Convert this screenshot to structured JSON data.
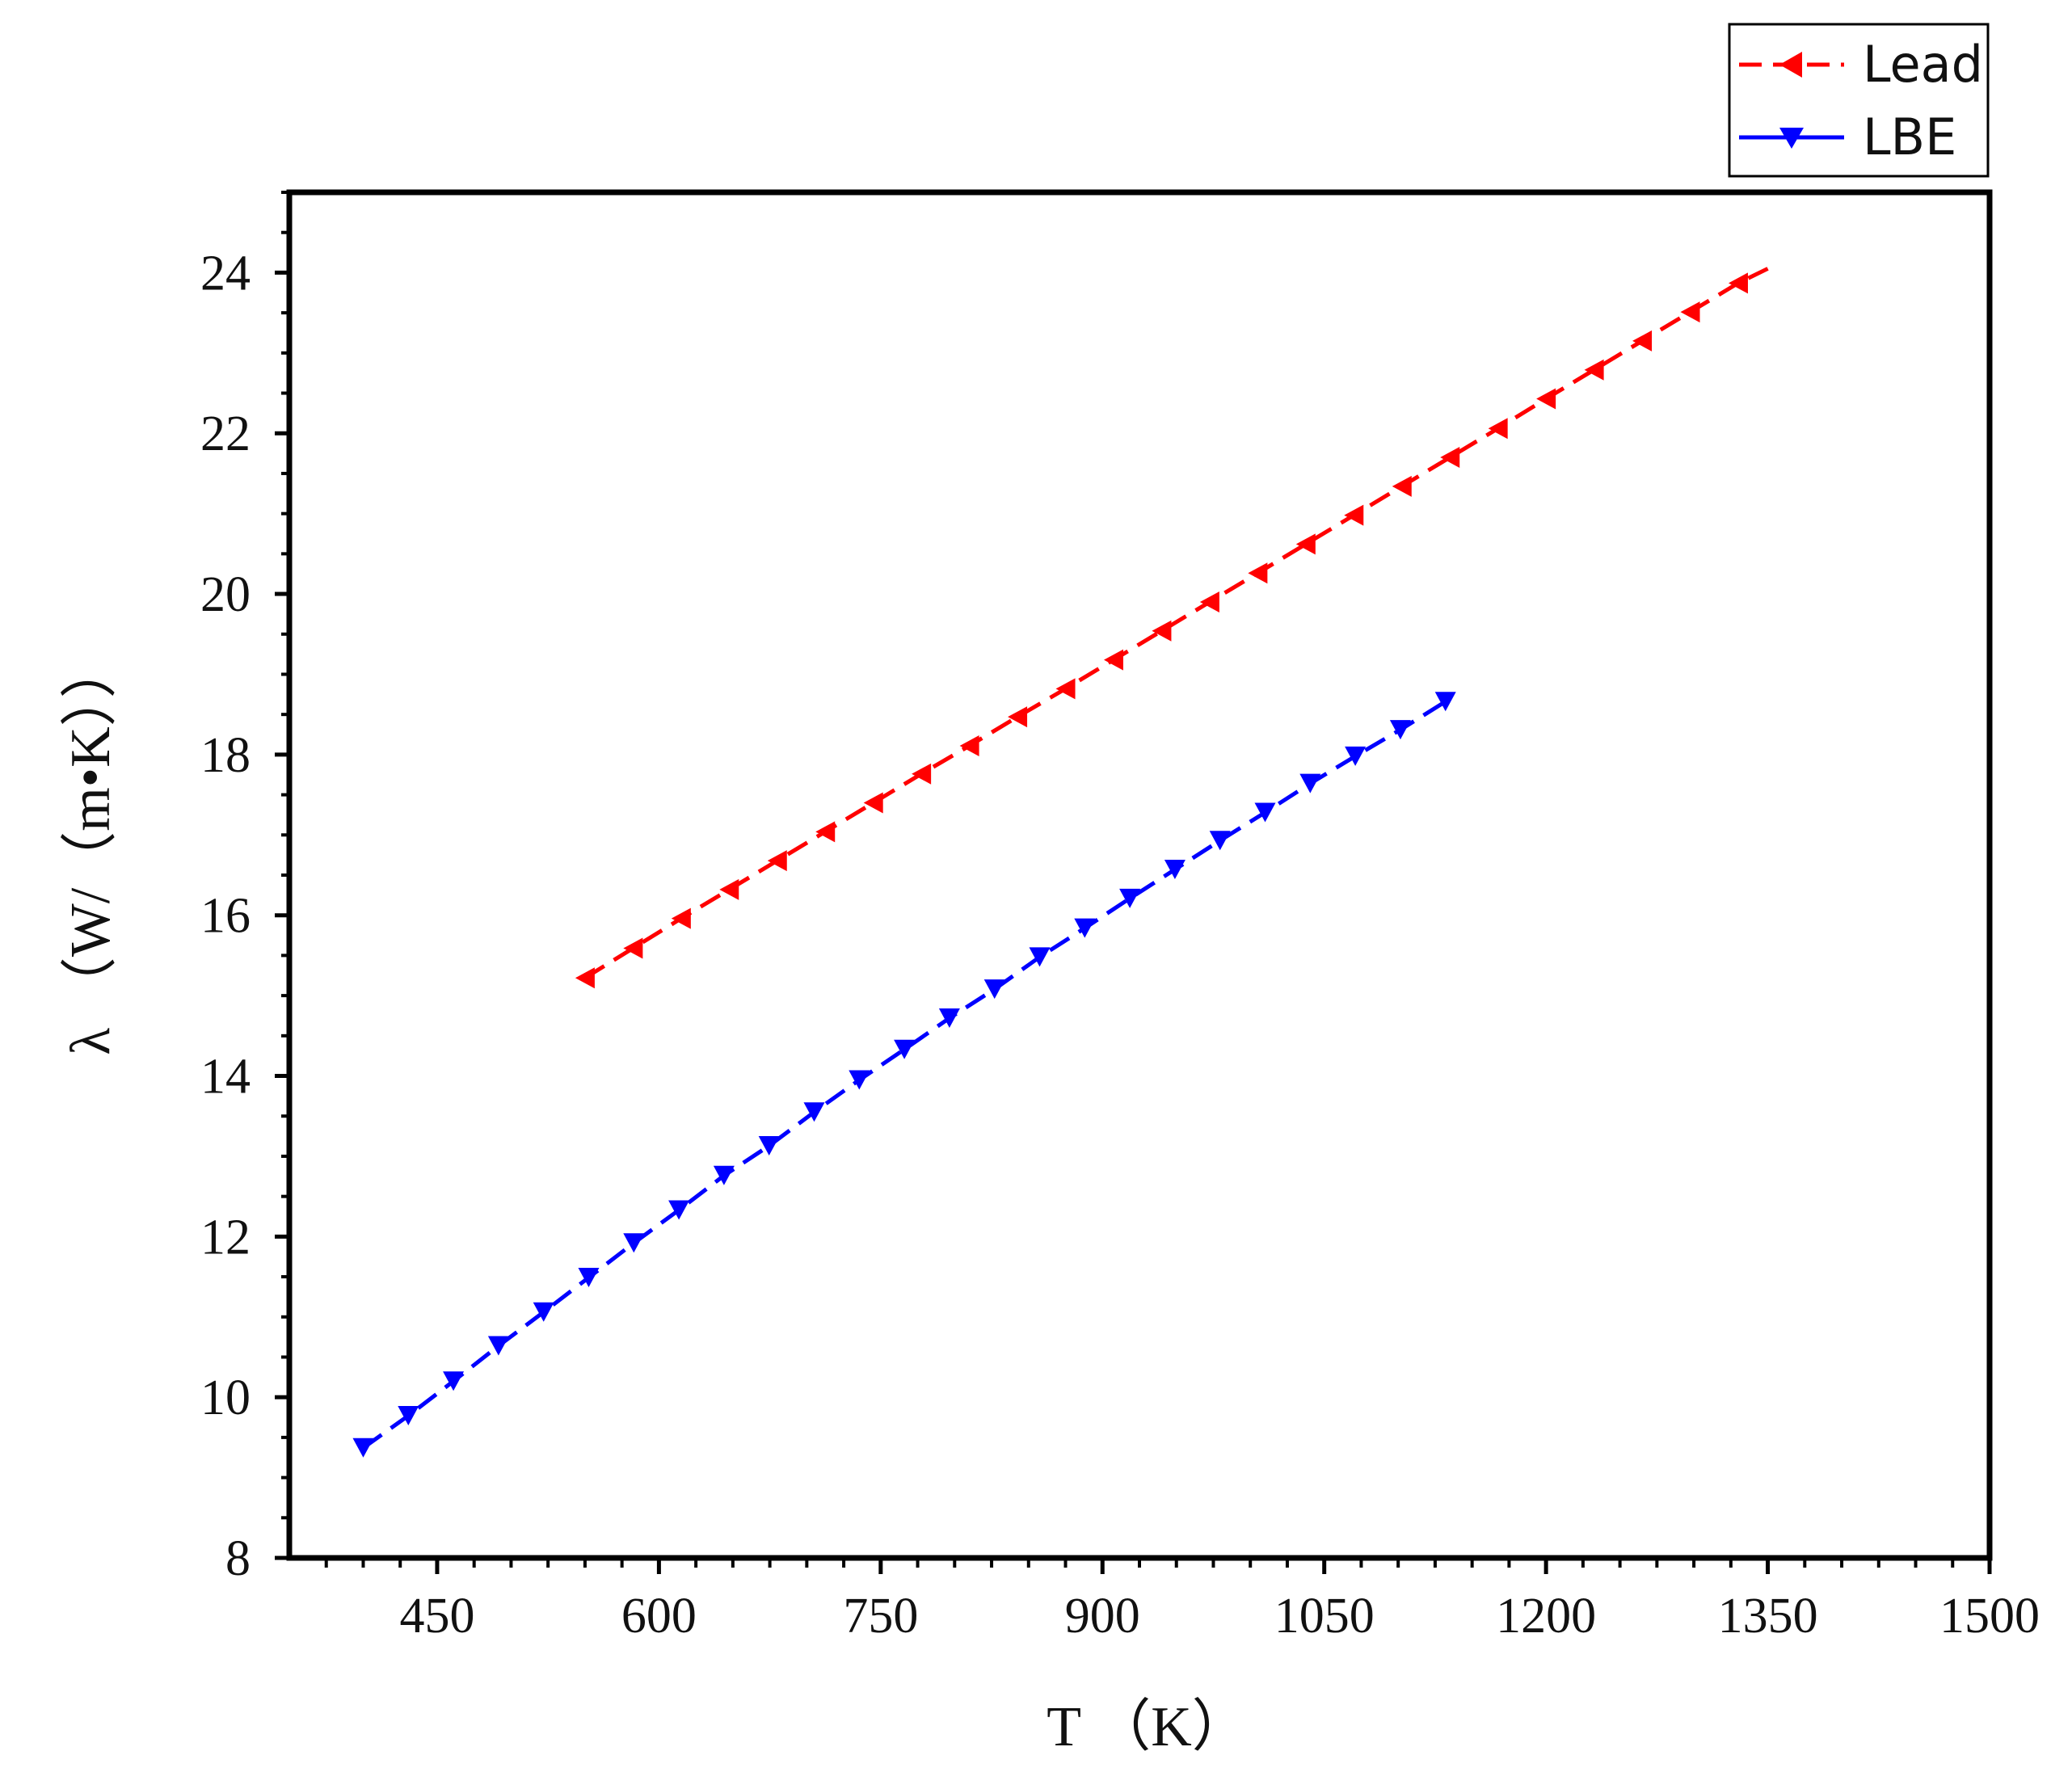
{
  "chart_data": {
    "type": "line",
    "xlabel": "T （K）",
    "ylabel": "λ （W/（m•K））",
    "xlim": [
      350,
      1500
    ],
    "ylim": [
      8,
      25
    ],
    "x_ticks": [
      "450",
      "600",
      "750",
      "900",
      "1050",
      "1200",
      "1350",
      "1500"
    ],
    "x_tick_values": [
      450,
      600,
      750,
      900,
      1050,
      1200,
      1350,
      1500
    ],
    "y_ticks": [
      "8",
      "10",
      "12",
      "14",
      "16",
      "18",
      "20",
      "22",
      "24"
    ],
    "y_tick_values": [
      8,
      10,
      12,
      14,
      16,
      18,
      20,
      22,
      24
    ],
    "grid": false,
    "legend_position": "top-right, outside plot",
    "series": [
      {
        "name": "Lead",
        "color": "#ff0000",
        "marker": "triangle-left",
        "line_style": "dashed",
        "x": [
          550,
          582.5,
          615,
          647.5,
          680,
          712.5,
          745,
          777.5,
          810,
          842.5,
          875,
          907.5,
          940,
          972.5,
          1005,
          1037.5,
          1070,
          1102.5,
          1135,
          1167.5,
          1200,
          1232.5,
          1265,
          1297.5,
          1330
        ],
        "y": [
          15.22,
          15.59,
          15.96,
          16.32,
          16.68,
          17.04,
          17.4,
          17.76,
          18.11,
          18.47,
          18.82,
          19.18,
          19.54,
          19.9,
          20.26,
          20.62,
          20.98,
          21.34,
          21.7,
          22.06,
          22.43,
          22.79,
          23.15,
          23.51,
          23.87
        ],
        "line_end": [
          1350,
          24.05
        ]
      },
      {
        "name": "LBE",
        "color": "#0000ff",
        "marker": "triangle-down",
        "line_style": "dashed",
        "x": [
          400,
          430.5,
          461,
          491.5,
          522,
          552.5,
          583,
          613.5,
          644,
          674.5,
          705,
          735.5,
          766,
          796.5,
          827,
          857.5,
          888,
          918.5,
          949,
          979.5,
          1010,
          1040.5,
          1071,
          1101.5,
          1132
        ],
        "y": [
          9.37,
          9.77,
          10.2,
          10.64,
          11.06,
          11.49,
          11.92,
          12.33,
          12.76,
          13.13,
          13.55,
          13.95,
          14.33,
          14.72,
          15.08,
          15.48,
          15.84,
          16.21,
          16.57,
          16.93,
          17.28,
          17.64,
          17.98,
          18.31,
          18.66
        ]
      }
    ]
  }
}
